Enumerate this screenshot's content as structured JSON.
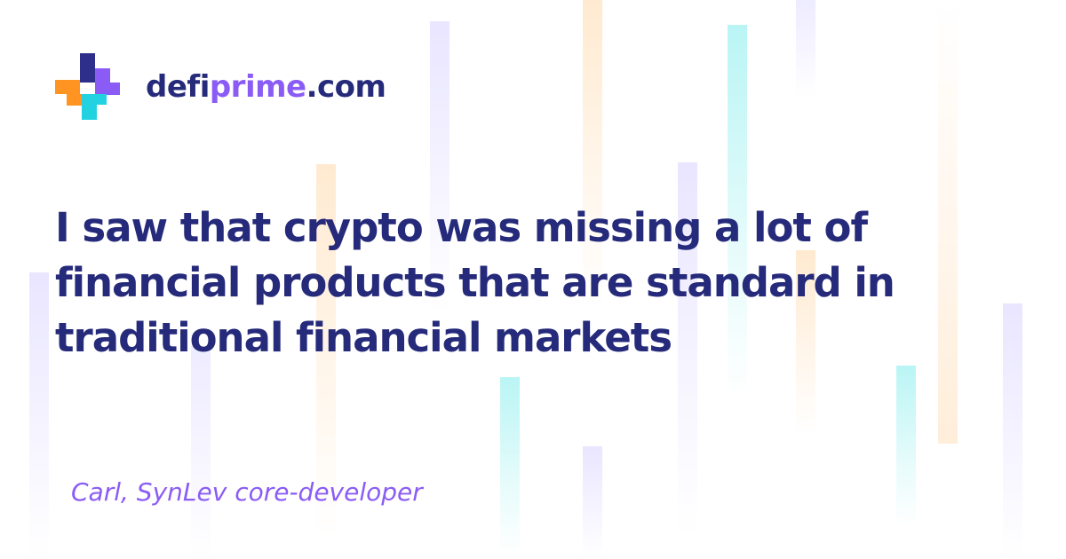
{
  "brand": {
    "name_part1": "defi",
    "name_part2": "prime",
    "name_part3": ".com"
  },
  "quote": {
    "line1": "I saw that crypto was missing a lot of",
    "line2": "financial products that are standard in",
    "line3": "traditional financial markets"
  },
  "author": "Carl, SynLev core-developer",
  "colors": {
    "text_primary": "#262a7a",
    "accent_purple": "#8a5cf5",
    "logo_navy": "#2e2f8a",
    "logo_purple": "#8a5cf5",
    "logo_orange": "#ff9422",
    "logo_cyan": "#23d2e0",
    "background": "#ffffff"
  },
  "icons": {
    "logo": "defiprime-plus-logo-icon"
  }
}
